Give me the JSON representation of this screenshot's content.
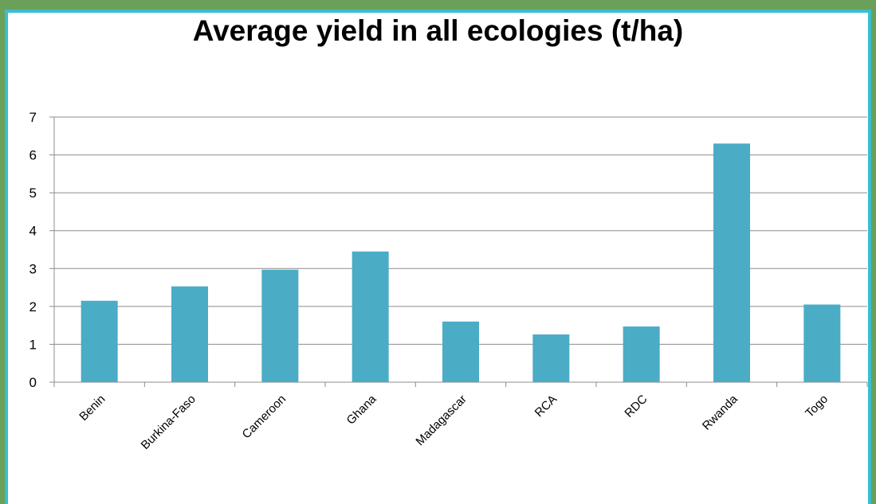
{
  "chart_data": {
    "type": "bar",
    "title": "Average yield in all ecologies (t/ha)",
    "xlabel": "",
    "ylabel": "",
    "categories": [
      "Benin",
      "Burkina-Faso",
      "Cameroon",
      "Ghana",
      "Madagascar",
      "RCA",
      "RDC",
      "Rwanda",
      "Togo"
    ],
    "values": [
      2.15,
      2.53,
      2.97,
      3.45,
      1.6,
      1.26,
      1.47,
      6.3,
      2.05
    ],
    "ylim": [
      0,
      7
    ],
    "yticks": [
      "0",
      "1",
      "2",
      "3",
      "4",
      "5",
      "6",
      "7"
    ],
    "grid": true,
    "legend": "none",
    "colors": {
      "bar": "#4bacc6",
      "frame_border": "#38bfd0",
      "background": "#6aa05a"
    }
  }
}
